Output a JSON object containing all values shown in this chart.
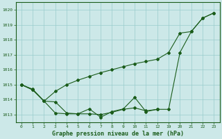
{
  "title": "Graphe pression niveau de la mer (hPa)",
  "bg_color": "#cce8e8",
  "grid_color": "#99cccc",
  "line_color": "#1a5c1a",
  "xlabels": [
    "0",
    "1",
    "2",
    "3",
    "4",
    "5",
    "6",
    "7",
    "8",
    "9",
    "10",
    "11",
    "12",
    "19",
    "20",
    "21",
    "22",
    "23"
  ],
  "ylim": [
    1012.5,
    1020.5
  ],
  "yticks": [
    1013,
    1014,
    1015,
    1016,
    1017,
    1018,
    1019,
    1020
  ],
  "series1_y": [
    1015.0,
    1014.7,
    1013.9,
    1013.85,
    1013.1,
    1013.05,
    1013.38,
    1012.82,
    1013.2,
    1013.38,
    1014.15,
    1013.2,
    1013.35,
    null,
    null,
    null,
    null,
    null
  ],
  "series2_y": [
    1015.0,
    1014.65,
    1013.9,
    1014.55,
    1015.0,
    1015.3,
    1015.55,
    1015.8,
    1016.0,
    1016.2,
    1016.4,
    1016.55,
    1016.7,
    1017.15,
    1018.45,
    1018.55,
    1019.45,
    1019.8
  ],
  "series3_y": [
    1015.0,
    1014.65,
    1013.9,
    1013.1,
    1013.05,
    1013.05,
    1013.05,
    1013.0,
    1013.15,
    1013.35,
    1013.45,
    1013.25,
    1013.35,
    1013.35,
    1017.15,
    1018.55,
    1019.45,
    1019.8
  ]
}
